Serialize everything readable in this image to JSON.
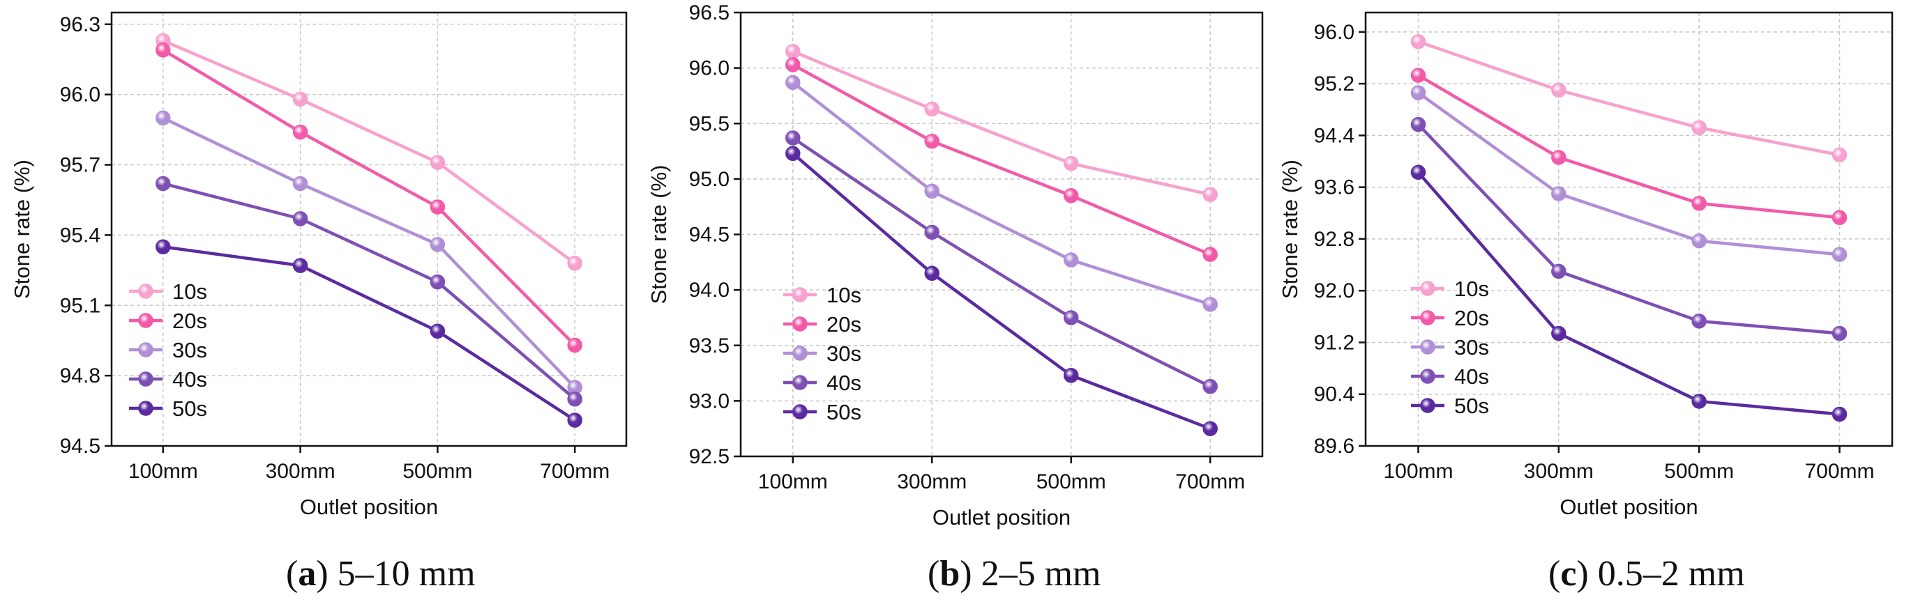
{
  "series_colors": [
    "#f7a1cf",
    "#f25aa9",
    "#b08fd6",
    "#7e4fb4",
    "#5a2aa0"
  ],
  "chart_data": [
    {
      "type": "line",
      "caption_letter": "a",
      "caption_text": " 5–10 mm",
      "xlabel": "Outlet position",
      "ylabel": "Stone rate (%)",
      "categories": [
        "100mm",
        "300mm",
        "500mm",
        "700mm"
      ],
      "ylim": [
        94.5,
        96.35
      ],
      "yticks": [
        "94.5",
        "94.8",
        "95.1",
        "95.4",
        "95.7",
        "96.0",
        "96.3"
      ],
      "series": [
        {
          "name": "10s",
          "values": [
            96.23,
            95.98,
            95.71,
            95.28
          ]
        },
        {
          "name": "20s",
          "values": [
            96.19,
            95.84,
            95.52,
            94.93
          ]
        },
        {
          "name": "30s",
          "values": [
            95.9,
            95.62,
            95.36,
            94.75
          ]
        },
        {
          "name": "40s",
          "values": [
            95.62,
            95.47,
            95.2,
            94.7
          ]
        },
        {
          "name": "50s",
          "values": [
            95.35,
            95.27,
            94.99,
            94.61
          ]
        }
      ]
    },
    {
      "type": "line",
      "caption_letter": "b",
      "caption_text": " 2–5 mm",
      "xlabel": "Outlet position",
      "ylabel": "Stone rate (%)",
      "categories": [
        "100mm",
        "300mm",
        "500mm",
        "700mm"
      ],
      "ylim": [
        92.5,
        96.5
      ],
      "yticks": [
        "92.5",
        "93.0",
        "93.5",
        "94.0",
        "94.5",
        "95.0",
        "95.5",
        "96.0",
        "96.5"
      ],
      "series": [
        {
          "name": "10s",
          "values": [
            96.15,
            95.63,
            95.14,
            94.86
          ]
        },
        {
          "name": "20s",
          "values": [
            96.03,
            95.34,
            94.85,
            94.32
          ]
        },
        {
          "name": "30s",
          "values": [
            95.87,
            94.89,
            94.27,
            93.87
          ]
        },
        {
          "name": "40s",
          "values": [
            95.37,
            94.52,
            93.75,
            93.13
          ]
        },
        {
          "name": "50s",
          "values": [
            95.23,
            94.15,
            93.23,
            92.75
          ]
        }
      ]
    },
    {
      "type": "line",
      "caption_letter": "c",
      "caption_text": " 0.5–2 mm",
      "xlabel": "Outlet position",
      "ylabel": "Stone rate (%)",
      "categories": [
        "100mm",
        "300mm",
        "500mm",
        "700mm"
      ],
      "ylim": [
        89.6,
        96.3
      ],
      "yticks": [
        "89.6",
        "90.4",
        "91.2",
        "92.0",
        "92.8",
        "93.6",
        "94.4",
        "95.2",
        "96.0"
      ],
      "series": [
        {
          "name": "10s",
          "values": [
            95.85,
            95.1,
            94.52,
            94.1
          ]
        },
        {
          "name": "20s",
          "values": [
            95.33,
            94.06,
            93.35,
            93.13
          ]
        },
        {
          "name": "30s",
          "values": [
            95.06,
            93.5,
            92.77,
            92.56
          ]
        },
        {
          "name": "40s",
          "values": [
            94.57,
            92.3,
            91.53,
            91.34
          ]
        },
        {
          "name": "50s",
          "values": [
            93.83,
            91.34,
            90.29,
            90.09
          ]
        }
      ]
    }
  ]
}
